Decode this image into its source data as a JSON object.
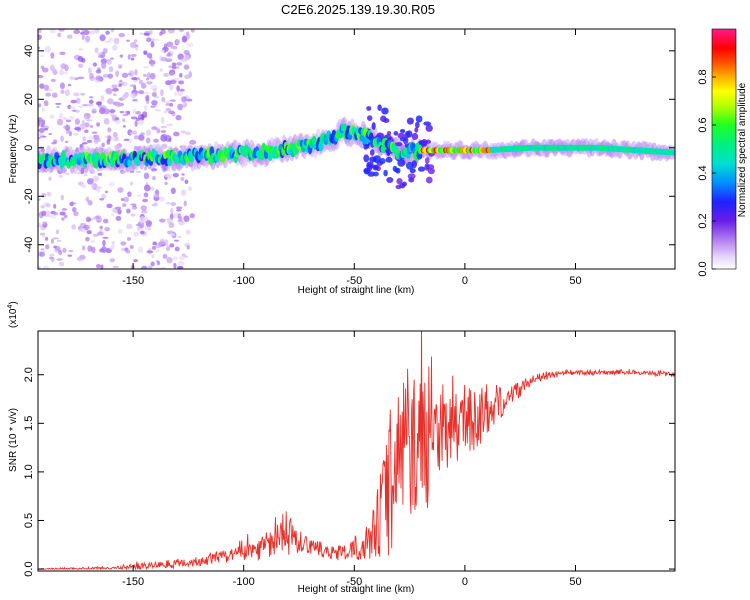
{
  "figure": {
    "title": "C2E6.2025.139.19.30.R05"
  },
  "chart_data": [
    {
      "type": "heatmap",
      "xlabel": "Height of straight line (km)",
      "ylabel": "Frequency (Hz)",
      "xlim": [
        -193,
        95
      ],
      "ylim": [
        -50,
        49
      ],
      "xticks": [
        -150,
        -100,
        -50,
        0,
        50
      ],
      "yticks": [
        -40,
        -20,
        0,
        20,
        40
      ],
      "colorbar": {
        "label": "Normalized spectral amplitude",
        "range": [
          0,
          1
        ],
        "ticks": [
          0,
          0.2,
          0.4,
          0.6,
          0.8
        ],
        "tick_labels": [
          "0.0",
          "0.2",
          "0.4",
          "0.6",
          "0.8"
        ]
      },
      "ridge": {
        "description_points_x": [
          -193,
          -170,
          -150,
          -130,
          -110,
          -90,
          -70,
          -60,
          -55,
          -45,
          -35,
          -28,
          -20,
          -10,
          0,
          10,
          30,
          60,
          95
        ],
        "frequency_y": [
          -5,
          -5,
          -4.5,
          -4,
          -3,
          -2,
          1,
          4,
          7,
          5,
          0,
          -2,
          -1,
          -1,
          -1,
          -1,
          0,
          0,
          -2
        ]
      }
    },
    {
      "type": "line",
      "xlabel": "Height of straight line (km)",
      "ylabel": "SNR (10 * v/v)",
      "multiplier_label": "(x10",
      "multiplier_exponent": "4",
      "multiplier_close": ")",
      "xlim": [
        -193,
        95
      ],
      "ylim": [
        -0.02,
        2.45
      ],
      "xticks": [
        -150,
        -100,
        -50,
        0,
        50
      ],
      "yticks": [
        0.0,
        0.5,
        1.0,
        1.5,
        2.0
      ],
      "ytick_labels": [
        "0.0",
        "0.5",
        "1.0",
        "1.5",
        "2.0"
      ],
      "series": [
        {
          "color": "#e8302a",
          "envelope_x": [
            -193,
            -160,
            -140,
            -120,
            -105,
            -95,
            -85,
            -80,
            -75,
            -65,
            -55,
            -45,
            -40,
            -36,
            -32,
            -28,
            -24,
            -20,
            -16,
            -12,
            -8,
            -4,
            0,
            5,
            10,
            15,
            20,
            25,
            30,
            40,
            50,
            60,
            70,
            80,
            95
          ],
          "envelope_y": [
            0.0,
            0.01,
            0.04,
            0.08,
            0.14,
            0.2,
            0.3,
            0.4,
            0.25,
            0.2,
            0.15,
            0.25,
            0.45,
            0.7,
            1.0,
            1.3,
            1.25,
            1.35,
            1.3,
            1.5,
            1.35,
            1.45,
            1.5,
            1.55,
            1.6,
            1.7,
            1.8,
            1.85,
            1.95,
            2.0,
            2.02,
            2.02,
            2.03,
            2.02,
            2.0
          ],
          "spread_y": [
            0.01,
            0.02,
            0.05,
            0.07,
            0.1,
            0.15,
            0.2,
            0.35,
            0.1,
            0.1,
            0.1,
            0.2,
            0.4,
            0.8,
            1.0,
            1.0,
            0.9,
            0.9,
            0.9,
            0.6,
            0.5,
            0.45,
            0.4,
            0.4,
            0.35,
            0.25,
            0.15,
            0.1,
            0.06,
            0.04,
            0.03,
            0.03,
            0.03,
            0.03,
            0.03
          ]
        }
      ]
    }
  ]
}
